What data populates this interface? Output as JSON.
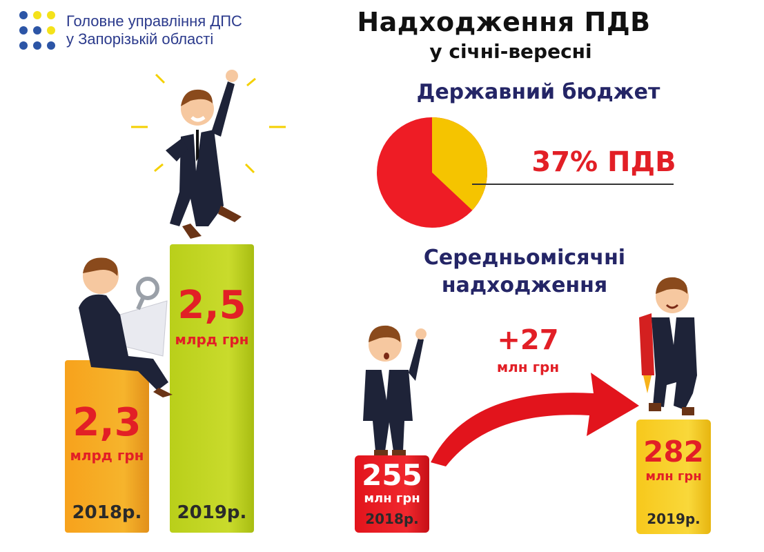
{
  "header": {
    "org_line1": "Головне управління ДПС",
    "org_line2": "у Запорізькій області",
    "title": "Надходження ПДВ",
    "subtitle": "у січні-вересні"
  },
  "budget": {
    "heading": "Державний бюджет",
    "vat_share_label": "37% ПДВ",
    "vat_share": 0.37,
    "colors": {
      "vat": "#f5c400",
      "other": "#ee1c25"
    }
  },
  "annual": {
    "bars": [
      {
        "value": "2,3",
        "unit": "млрд грн",
        "year": "2018р.",
        "color": "#f7a21c"
      },
      {
        "value": "2,5",
        "unit": "млрд грн",
        "year": "2019р.",
        "color": "#c2d520"
      }
    ]
  },
  "monthly": {
    "heading_line1": "Середньомісячні",
    "heading_line2": "надходження",
    "increase_value": "+27",
    "increase_unit": "млн грн",
    "bars": [
      {
        "value": "255",
        "unit": "млн грн",
        "year": "2018р.",
        "color": "#e2141c"
      },
      {
        "value": "282",
        "unit": "млн грн",
        "year": "2019р.",
        "color": "#f7c81c"
      }
    ]
  }
}
